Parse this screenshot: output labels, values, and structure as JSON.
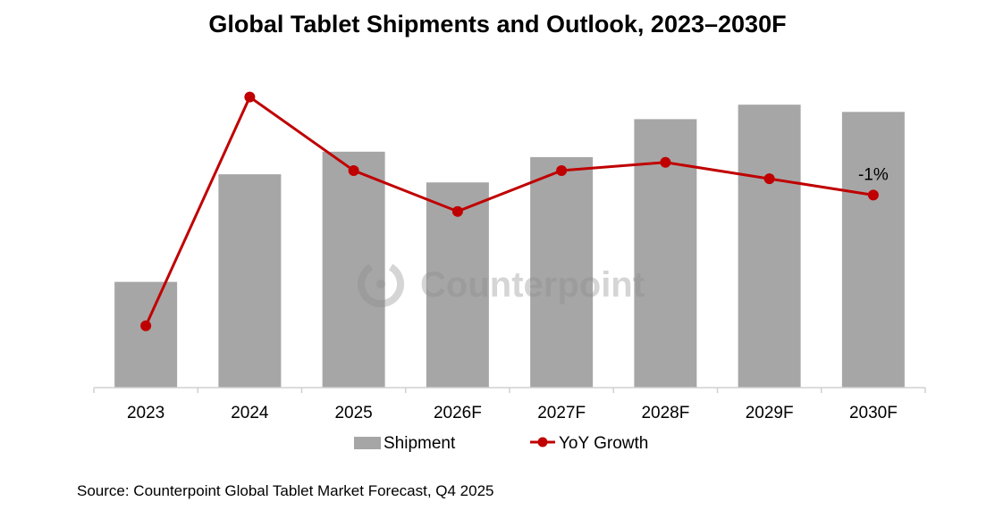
{
  "chart_data": {
    "type": "bar",
    "title": "Global Tablet Shipments and Outlook, 2023–2030F",
    "categories": [
      "2023",
      "2024",
      "2025",
      "2026F",
      "2027F",
      "2028F",
      "2029F",
      "2030F"
    ],
    "series": [
      {
        "name": "Shipment",
        "type": "bar",
        "color": "#a6a6a6",
        "values": [
          117,
          236,
          261,
          227,
          255,
          297,
          313,
          305
        ]
      },
      {
        "name": "YoY Growth",
        "type": "line",
        "color": "#c00000",
        "unit": "%",
        "values": [
          -17,
          11,
          2,
          -3,
          2,
          3,
          1,
          -1
        ]
      }
    ],
    "data_labels": [
      {
        "category": "2030F",
        "series": "YoY Growth",
        "text": "-1%"
      }
    ],
    "ylim": [
      0,
      330
    ],
    "ylim_growth": [
      -25,
      15
    ],
    "xlabel": "",
    "ylabel": "",
    "grid": false,
    "legend": {
      "placement": "bottom",
      "entries": [
        "Shipment",
        "YoY Growth"
      ]
    },
    "watermark": "Counterpoint",
    "source": "Source: Counterpoint Global Tablet Market Forecast, Q4 2025"
  }
}
